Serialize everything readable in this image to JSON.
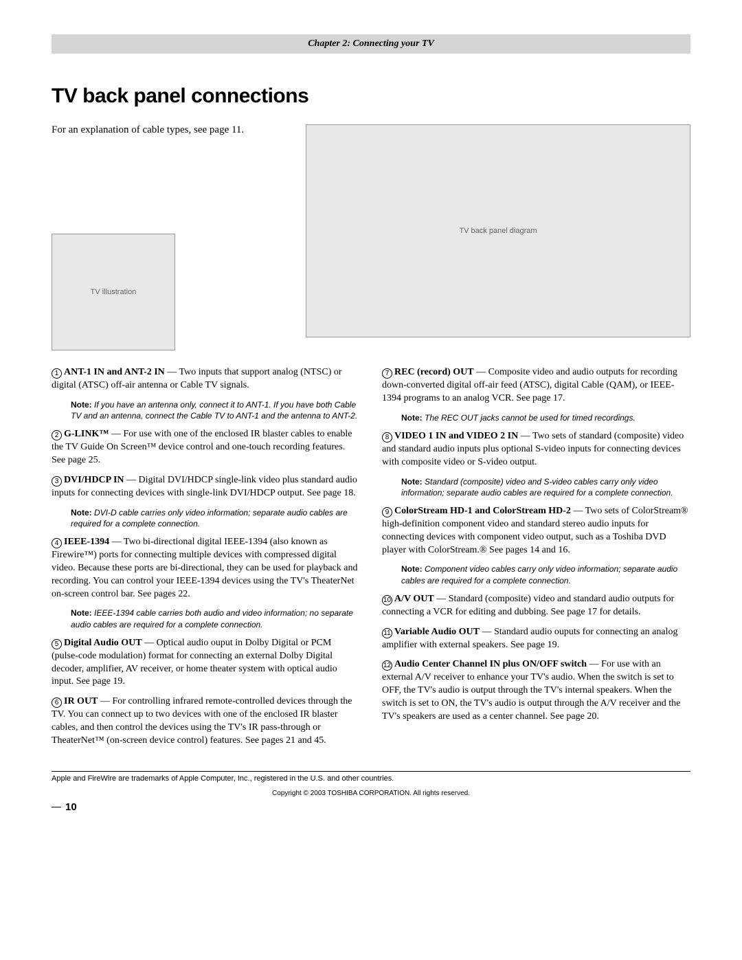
{
  "header": {
    "chapter": "Chapter 2: Connecting your TV"
  },
  "title": "TV back panel connections",
  "intro": "For an explanation of cable types, see page 11.",
  "diagram_alt": "TV back panel diagram",
  "tv_alt": "TV illustration",
  "left": [
    {
      "num": "1",
      "title": "ANT-1 IN and ANT-2 IN",
      "body": " — Two inputs that support analog (NTSC) or digital (ATSC) off-air antenna or Cable TV signals.",
      "note": "If you have an antenna only, connect it to ANT-1. If you have both Cable TV and an antenna, connect the Cable TV to ANT-1 and the antenna to ANT-2."
    },
    {
      "num": "2",
      "title": "G-LINK™",
      "body": " — For use with one of the enclosed IR blaster cables to enable the TV Guide On Screen™ device control and one-touch recording features. See page 25."
    },
    {
      "num": "3",
      "title": "DVI/HDCP IN",
      "body": " — Digital DVI/HDCP single-link video plus standard audio inputs for connecting devices with single-link DVI/HDCP output. See page 18.",
      "note": "DVI-D cable carries only video information; separate audio cables are required for a complete connection."
    },
    {
      "num": "4",
      "title": "IEEE-1394",
      "body": " — Two bi-directional digital IEEE-1394 (also known as Firewire™) ports for connecting multiple devices with compressed digital video. Because these ports are bi-directional, they can be used for playback and recording. You can control your IEEE-1394 devices using the TV's TheaterNet on-screen control bar. See pages 22.",
      "note": "IEEE-1394 cable carries both audio and video information; no separate audio cables are required for a complete connection."
    },
    {
      "num": "5",
      "title": "Digital Audio OUT",
      "body": " — Optical audio ouput in Dolby Digital or PCM (pulse-code modulation) format for connecting an external Dolby Digital decoder, amplifier, AV receiver, or home theater system with optical audio input. See page 19."
    },
    {
      "num": "6",
      "title": "IR OUT",
      "body": " — For controlling infrared remote-controlled devices through the TV. You can connect up to two devices with one of the enclosed IR blaster cables, and then control the devices using the TV's IR pass-through or TheaterNet™ (on-screen device control) features. See pages 21 and 45."
    }
  ],
  "right": [
    {
      "num": "7",
      "title": "REC (record) OUT",
      "body": " — Composite video and audio outputs for recording down-converted digital off-air feed (ATSC), digital Cable (QAM), or IEEE-1394 programs to an analog VCR. See page 17.",
      "note": "The REC OUT jacks cannot be used for timed recordings."
    },
    {
      "num": "8",
      "title": "VIDEO 1 IN and VIDEO 2 IN",
      "body": " — Two sets of standard (composite) video and standard audio inputs plus optional S-video inputs for connecting devices with composite video or S-video output.",
      "note": "Standard (composite) video and S-video cables carry only video information; separate audio cables are required for a complete connection."
    },
    {
      "num": "9",
      "title": "ColorStream HD-1 and ColorStream HD-2",
      "body": " — Two sets of ColorStream® high-definition component video and standard stereo audio inputs for connecting devices with component video output, such as a Toshiba DVD player with ColorStream.® See pages 14 and 16.",
      "note": "Component video cables carry only video information; separate audio cables are required for a complete connection."
    },
    {
      "num": "10",
      "title": "A/V OUT",
      "body": " — Standard (composite) video and standard audio outputs for connecting a VCR for editing and dubbing. See page 17 for details."
    },
    {
      "num": "11",
      "title": "Variable Audio OUT",
      "body": " — Standard audio ouputs for connecting an analog amplifier with external speakers. See page 19."
    },
    {
      "num": "12",
      "title": "Audio Center Channel IN plus ON/OFF switch",
      "body": " — For use with an external A/V receiver to enhance your TV's audio. When the switch is set to OFF, the TV's audio is output through the TV's internal speakers. When the switch is set to ON, the TV's audio is output through the A/V receiver and the TV's speakers are used as a center channel. See page 20."
    }
  ],
  "note_label": "Note:",
  "footnote": "Apple and FireWire are trademarks of Apple Computer, Inc., registered in the U.S. and other countries.",
  "copyright": "Copyright © 2003 TOSHIBA CORPORATION. All rights reserved.",
  "page_number": "10",
  "colors": {
    "header_bg": "#d5d5d5",
    "text": "#000000",
    "diagram_bg": "#e8e8e8"
  }
}
